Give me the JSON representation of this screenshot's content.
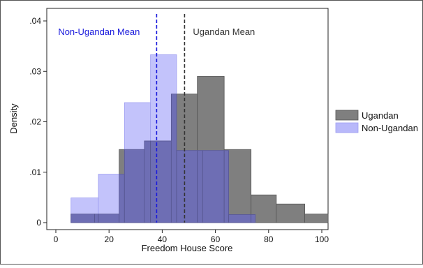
{
  "chart_data": {
    "type": "histogram",
    "xlabel": "Freedom House Score",
    "ylabel": "Density",
    "xlim": [
      0,
      100
    ],
    "ylim": [
      0,
      0.04
    ],
    "x_ticks": [
      {
        "value": 0,
        "label": "0"
      },
      {
        "value": 20,
        "label": "20"
      },
      {
        "value": 40,
        "label": "40"
      },
      {
        "value": 60,
        "label": "60"
      },
      {
        "value": 80,
        "label": "80"
      },
      {
        "value": 100,
        "label": "100"
      }
    ],
    "y_ticks": [
      {
        "value": 0,
        "label": "0"
      },
      {
        "value": 0.01,
        "label": ".01"
      },
      {
        "value": 0.02,
        "label": ".02"
      },
      {
        "value": 0.03,
        "label": ".03"
      },
      {
        "value": 0.04,
        "label": ".04"
      }
    ],
    "series": [
      {
        "name": "Ugandan",
        "color": "#7f7f7f",
        "bins": [
          {
            "x0": 5.7,
            "x1": 14.6,
            "density": 0.0017
          },
          {
            "x0": 14.6,
            "x1": 23.8,
            "density": 0.0017
          },
          {
            "x0": 23.8,
            "x1": 33.3,
            "density": 0.0145
          },
          {
            "x0": 33.3,
            "x1": 43.4,
            "density": 0.0162
          },
          {
            "x0": 43.4,
            "x1": 53.2,
            "density": 0.0255
          },
          {
            "x0": 53.2,
            "x1": 63.3,
            "density": 0.029
          },
          {
            "x0": 63.3,
            "x1": 73.4,
            "density": 0.0145
          },
          {
            "x0": 73.4,
            "x1": 82.9,
            "density": 0.0055
          },
          {
            "x0": 82.9,
            "x1": 93.6,
            "density": 0.0037
          },
          {
            "x0": 93.6,
            "x1": 102.4,
            "density": 0.0017
          }
        ]
      },
      {
        "name": "Non-Ugandan",
        "color": "#b8b8fa",
        "bins": [
          {
            "x0": 5.7,
            "x1": 16.0,
            "density": 0.0049
          },
          {
            "x0": 16.0,
            "x1": 25.8,
            "density": 0.0096
          },
          {
            "x0": 25.8,
            "x1": 35.6,
            "density": 0.0238
          },
          {
            "x0": 35.6,
            "x1": 45.4,
            "density": 0.0333
          },
          {
            "x0": 45.4,
            "x1": 55.2,
            "density": 0.0143
          },
          {
            "x0": 55.2,
            "x1": 65.0,
            "density": 0.0143
          },
          {
            "x0": 65.0,
            "x1": 75.0,
            "density": 0.0016
          }
        ]
      }
    ],
    "overlap_color": "#6e6eb4",
    "reference_lines": [
      {
        "label": "Non-Ugandan Mean",
        "x": 37.9,
        "color": "#1a1adc",
        "dash": "dashed"
      },
      {
        "label": "Ugandan Mean",
        "x": 48.4,
        "color": "#333333",
        "dash": "dashed"
      }
    ],
    "legend": {
      "position": "right",
      "items": [
        "Ugandan",
        "Non-Ugandan"
      ]
    },
    "grid": false
  }
}
